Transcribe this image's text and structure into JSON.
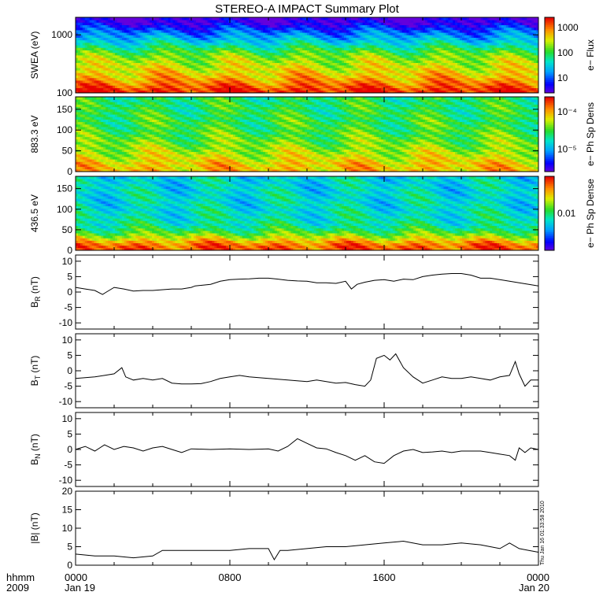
{
  "title": "STEREO-A IMPACT Summary Plot",
  "stamp": "Thu Jan 16 01:33:58 2010",
  "x_axis": {
    "hdr1": "hhmm",
    "hdr2": "2009",
    "ticks": [
      {
        "t": 0,
        "l1": "0000",
        "l2": "Jan 19"
      },
      {
        "t": 8,
        "l1": "0800",
        "l2": ""
      },
      {
        "t": 16,
        "l1": "1600",
        "l2": ""
      },
      {
        "t": 24,
        "l1": "0000",
        "l2": "Jan 20"
      }
    ]
  },
  "colors": {
    "line": "#000000",
    "gap": "#ffffff"
  },
  "chart_data": [
    {
      "type": "heatmap",
      "ylabel": "SWEA (eV)",
      "cbar_label": "e− Flux",
      "yscale": "log",
      "ylim": [
        100,
        2000
      ],
      "yticks": [
        "100",
        "1000"
      ],
      "cbar_ticks": [
        "10",
        "100",
        "1000"
      ],
      "profile": [
        [
          100,
          2.9
        ],
        [
          115,
          2.85
        ],
        [
          130,
          2.7
        ],
        [
          160,
          2.5
        ],
        [
          200,
          2.3
        ],
        [
          300,
          2.05
        ],
        [
          400,
          1.9
        ],
        [
          500,
          1.7
        ],
        [
          650,
          1.35
        ],
        [
          800,
          1.05
        ],
        [
          1000,
          0.8
        ],
        [
          1300,
          0.45
        ],
        [
          1600,
          0.15
        ],
        [
          2000,
          0.05
        ]
      ]
    },
    {
      "type": "heatmap",
      "ylabel": "883.3 eV",
      "cbar_label": "e− Ph Sp Dens",
      "ylim": [
        0,
        180
      ],
      "yticks": [
        "0",
        "50",
        "100",
        "150"
      ],
      "cbar_ticks": [
        "10⁻⁵",
        "10⁻⁴"
      ],
      "profile": [
        [
          0,
          0.78
        ],
        [
          20,
          0.76
        ],
        [
          40,
          0.68
        ],
        [
          70,
          0.6
        ],
        [
          100,
          0.55
        ],
        [
          140,
          0.52
        ],
        [
          180,
          0.5
        ]
      ]
    },
    {
      "type": "heatmap",
      "ylabel": "436.5 eV",
      "cbar_label": "e− Ph Sp Dense",
      "ylim": [
        0,
        180
      ],
      "yticks": [
        "0",
        "50",
        "100",
        "150"
      ],
      "cbar_ticks": [
        "0.01"
      ],
      "profile": [
        [
          0,
          0.9
        ],
        [
          10,
          0.9
        ],
        [
          20,
          0.82
        ],
        [
          30,
          0.7
        ],
        [
          45,
          0.55
        ],
        [
          60,
          0.45
        ],
        [
          100,
          0.4
        ],
        [
          180,
          0.38
        ]
      ]
    },
    {
      "type": "line",
      "ylabel": "B_R (nT)",
      "ylim": [
        -12,
        12
      ],
      "yticks": [
        "-10",
        "-5",
        "0",
        "5",
        "10"
      ],
      "x": [
        0,
        0.5,
        1,
        1.4,
        1.6,
        2,
        2.5,
        3,
        3.5,
        4,
        5,
        5.5,
        6,
        6.2,
        7,
        7.5,
        8,
        8.5,
        9,
        9.5,
        10,
        10.5,
        11,
        11.5,
        12,
        12.5,
        13,
        13.5,
        14,
        14.3,
        14.6,
        15,
        15.5,
        16,
        16.5,
        17,
        17.5,
        18,
        18.5,
        19,
        19.5,
        20,
        20.5,
        21,
        21.5,
        22,
        22.5,
        23,
        23.5,
        24
      ],
      "values": [
        1.5,
        1,
        0.5,
        -0.8,
        0,
        1.5,
        1,
        0.3,
        0.5,
        0.5,
        1,
        1,
        1.5,
        2,
        2.5,
        3.5,
        4,
        4.2,
        4.3,
        4.5,
        4.5,
        4.2,
        3.8,
        3.6,
        3.5,
        3,
        3,
        2.8,
        3.5,
        1,
        2.5,
        3.2,
        3.8,
        4,
        3.5,
        4.2,
        4,
        5,
        5.5,
        5.8,
        6,
        6,
        5.5,
        4.5,
        4.5,
        4,
        3.5,
        3,
        2.5,
        2
      ]
    },
    {
      "type": "line",
      "ylabel": "B_T (nT)",
      "ylim": [
        -12,
        12
      ],
      "yticks": [
        "-10",
        "-5",
        "0",
        "5",
        "10"
      ],
      "x": [
        0,
        1,
        1.5,
        2,
        2.4,
        2.6,
        3,
        3.5,
        4,
        4.5,
        5,
        5.5,
        6,
        6.5,
        7,
        7.5,
        8,
        8.5,
        9,
        10,
        11,
        12,
        12.5,
        13,
        13.5,
        14,
        14.5,
        15,
        15.3,
        15.6,
        16,
        16.3,
        16.6,
        17,
        17.5,
        18,
        18.5,
        19,
        19.5,
        20,
        20.5,
        21,
        21.5,
        22,
        22.5,
        22.8,
        23,
        23.3,
        23.6,
        24
      ],
      "values": [
        -2.5,
        -2,
        -1.5,
        -1,
        1,
        -2,
        -3,
        -2.5,
        -3,
        -2.5,
        -4,
        -4.3,
        -4.3,
        -4.2,
        -3.5,
        -2.5,
        -2,
        -1.5,
        -2,
        -2.5,
        -3,
        -3.5,
        -3,
        -3.5,
        -4,
        -3.8,
        -4.5,
        -5,
        -3,
        4,
        5,
        3.5,
        5.5,
        1,
        -2,
        -4,
        -3,
        -2,
        -2.5,
        -2.5,
        -2,
        -2.5,
        -3,
        -2,
        -1.5,
        3,
        -1,
        -5,
        -3,
        -3
      ]
    },
    {
      "type": "line",
      "ylabel": "B_N (nT)",
      "ylim": [
        -12,
        12
      ],
      "yticks": [
        "-10",
        "-5",
        "0",
        "5",
        "10"
      ],
      "x": [
        0,
        0.5,
        1,
        1.5,
        2,
        2.5,
        3,
        3.5,
        4,
        4.5,
        5,
        5.5,
        6,
        7,
        8,
        9,
        10,
        10.5,
        11,
        11.5,
        12,
        12.5,
        13,
        13.5,
        14,
        14.5,
        15,
        15.5,
        16,
        16.5,
        17,
        17.5,
        18,
        18.5,
        19,
        19.5,
        20,
        20.5,
        21,
        21.5,
        22,
        22.5,
        22.8,
        23,
        23.3,
        23.6,
        24
      ],
      "values": [
        0,
        1,
        -0.5,
        1.5,
        0,
        1,
        0.5,
        -0.5,
        0.5,
        1,
        0,
        -1,
        0.2,
        0,
        0.2,
        0,
        0.2,
        -0.5,
        1,
        3.5,
        2,
        0.5,
        0.2,
        -1,
        -2,
        -3.5,
        -2,
        -4,
        -4.5,
        -2,
        -0.5,
        0,
        -1,
        -0.8,
        -0.5,
        -1,
        -0.5,
        -0.5,
        -0.5,
        -1,
        -1.5,
        -2,
        -3.5,
        0.5,
        -1,
        0.5,
        0
      ]
    },
    {
      "type": "line",
      "ylabel": "|B| (nT)",
      "ylim": [
        0,
        20
      ],
      "yticks": [
        "0",
        "5",
        "10",
        "15",
        "20"
      ],
      "x": [
        0,
        1,
        2,
        3,
        4,
        4.5,
        5,
        6,
        7,
        8,
        9,
        10,
        10.3,
        10.6,
        11,
        12,
        13,
        14,
        15,
        16,
        17,
        18,
        19,
        20,
        21,
        21.5,
        22,
        22.5,
        23,
        23.5,
        24
      ],
      "values": [
        3,
        2.5,
        2.5,
        2,
        2.5,
        4,
        4,
        4,
        4,
        4,
        4.5,
        4.5,
        1.5,
        4,
        4,
        4.5,
        5,
        5,
        5.5,
        6,
        6.5,
        5.5,
        5.5,
        6,
        5.5,
        5,
        4.5,
        6,
        4.5,
        4,
        3.5
      ]
    }
  ]
}
